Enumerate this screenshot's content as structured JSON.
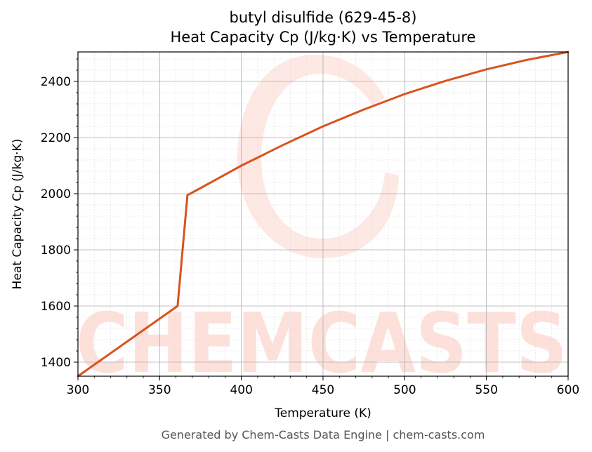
{
  "chart_data": {
    "type": "line",
    "title": "butyl disulfide (629-45-8)",
    "subtitle": "Heat Capacity Cp (J/kg·K) vs Temperature",
    "xlabel": "Temperature (K)",
    "ylabel": "Heat Capacity Cp (J/kg·K)",
    "xlim": [
      300,
      600
    ],
    "ylim": [
      1350,
      2505
    ],
    "x_ticks": [
      300,
      350,
      400,
      450,
      500,
      550,
      600
    ],
    "y_ticks": [
      1400,
      1600,
      1800,
      2000,
      2200,
      2400
    ],
    "grid": true,
    "series": [
      {
        "color": "#d9531e",
        "x": [
          300,
          361,
          367,
          375,
          400,
          425,
          450,
          475,
          500,
          525,
          550,
          575,
          600
        ],
        "y": [
          1350,
          1600,
          1995,
          2020,
          2100,
          2172,
          2240,
          2300,
          2355,
          2402,
          2443,
          2477,
          2505
        ]
      }
    ]
  },
  "watermark": {
    "text": "CHEMCASTS",
    "color": "#fde0da"
  },
  "footer": "Generated by Chem-Casts Data Engine | chem-casts.com"
}
